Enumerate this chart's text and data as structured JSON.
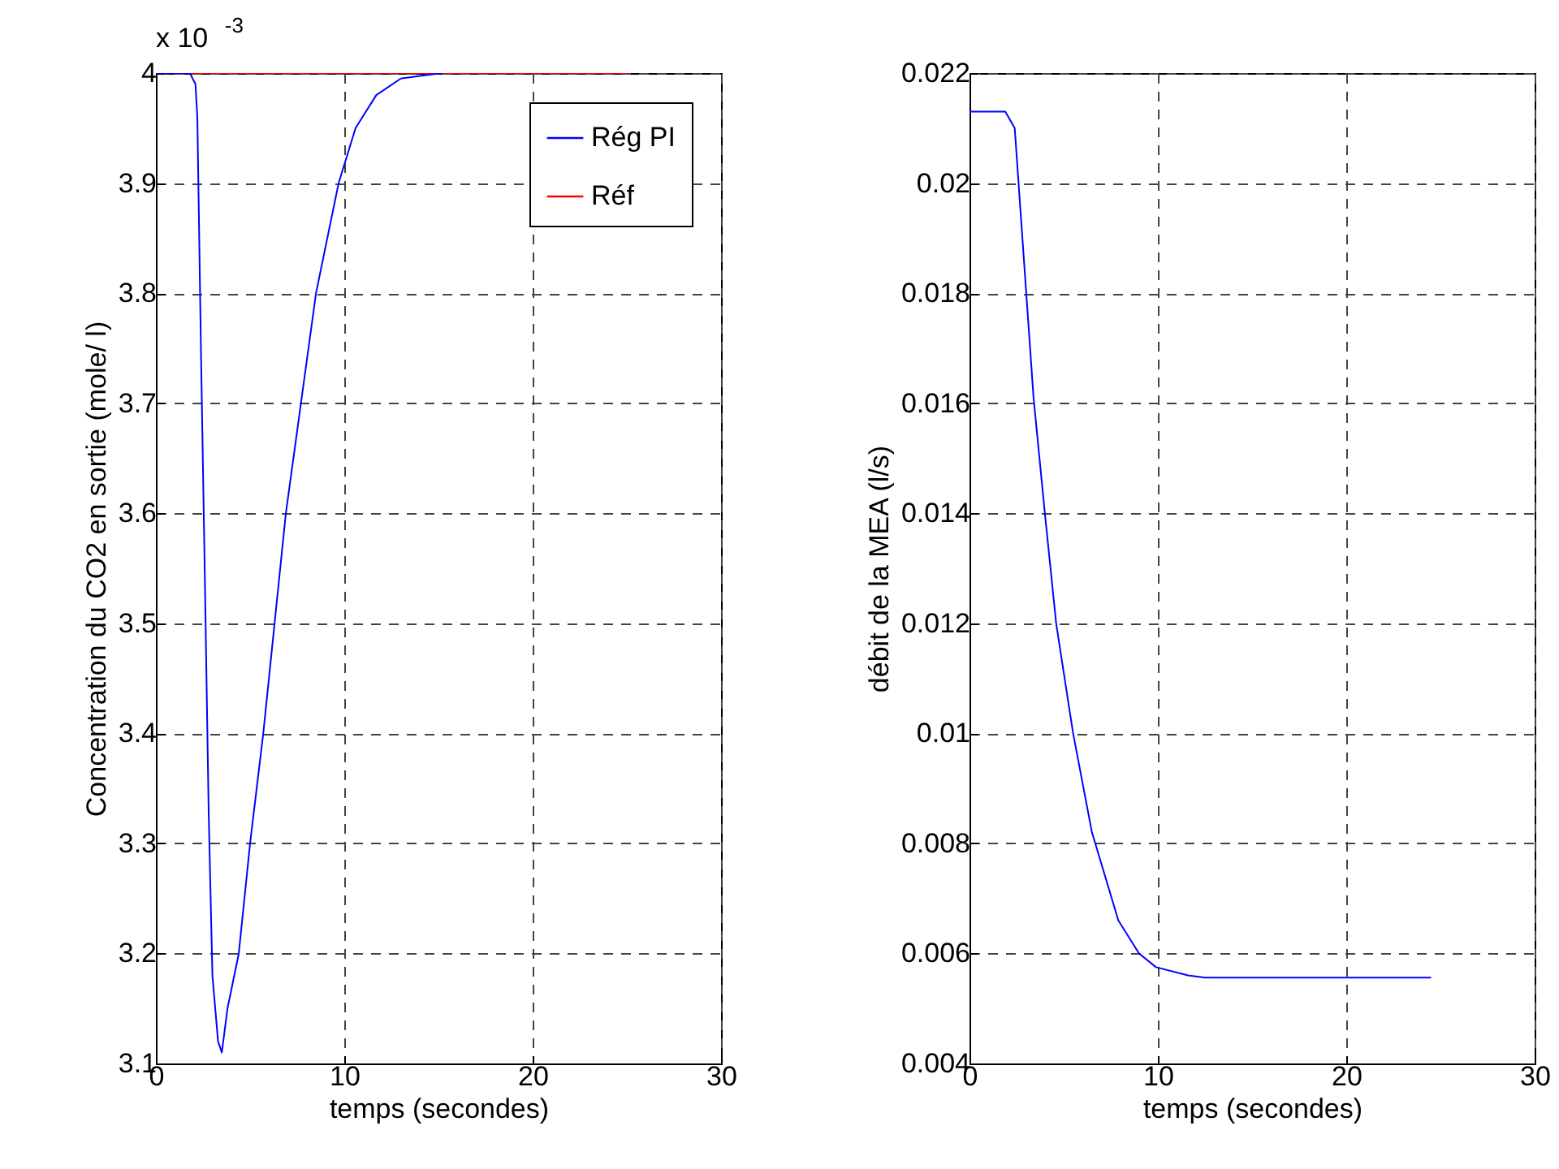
{
  "chart_data": [
    {
      "type": "line",
      "xlabel": "temps (secondes)",
      "ylabel": "Concentration du CO2 en sortie (mole/ l)",
      "annotations": [
        "x 10$^{-3}$"
      ],
      "xlim": [
        0,
        30
      ],
      "xticks": [
        0,
        10,
        20,
        30
      ],
      "ylim": [
        3.1,
        4
      ],
      "yticks": [
        3.1,
        3.2,
        3.3,
        3.4,
        3.5,
        3.6,
        3.7,
        3.8,
        3.9,
        4
      ],
      "grid": true,
      "legend": "top right",
      "series": [
        {
          "name": "Rég PI",
          "color": "#0000ff",
          "x": [
            0,
            1.8,
            2.1,
            2.2,
            2.4,
            2.6,
            2.8,
            3.0,
            3.3,
            3.5,
            3.8,
            4.4,
            5.0,
            5.7,
            6.3,
            6.9,
            7.7,
            8.5,
            9.7,
            10.6,
            11.7,
            13.0,
            15.2
          ],
          "values": [
            4,
            4,
            3.99,
            3.96,
            3.74,
            3.54,
            3.33,
            3.18,
            3.12,
            3.11,
            3.15,
            3.2,
            3.3,
            3.4,
            3.5,
            3.6,
            3.7,
            3.8,
            3.9,
            3.95,
            3.98,
            3.995,
            4
          ]
        },
        {
          "name": "Réf",
          "color": "#ff0000",
          "x": [
            0,
            25
          ],
          "values": [
            4,
            4
          ]
        }
      ]
    },
    {
      "type": "line",
      "xlabel": "temps (secondes)",
      "ylabel": "débit de la MEA (l/s)",
      "xlim": [
        0,
        30
      ],
      "xticks": [
        0,
        10,
        20,
        30
      ],
      "ylim": [
        0.004,
        0.022
      ],
      "yticks": [
        0.004,
        0.006,
        0.008,
        0.01,
        0.012,
        0.014,
        0.016,
        0.018,
        0.02,
        0.022
      ],
      "grid": true,
      "series": [
        {
          "color": "#0000ff",
          "x": [
            0,
            1.9,
            2.4,
            3.4,
            4.0,
            4.6,
            5.5,
            6.5,
            7.9,
            9.0,
            9.9,
            11.6,
            12.5,
            24.5
          ],
          "values": [
            0.0213,
            0.0213,
            0.021,
            0.0161,
            0.014,
            0.012,
            0.01,
            0.0082,
            0.0066,
            0.006,
            0.00575,
            0.0056,
            0.00556,
            0.00556
          ]
        }
      ]
    }
  ]
}
